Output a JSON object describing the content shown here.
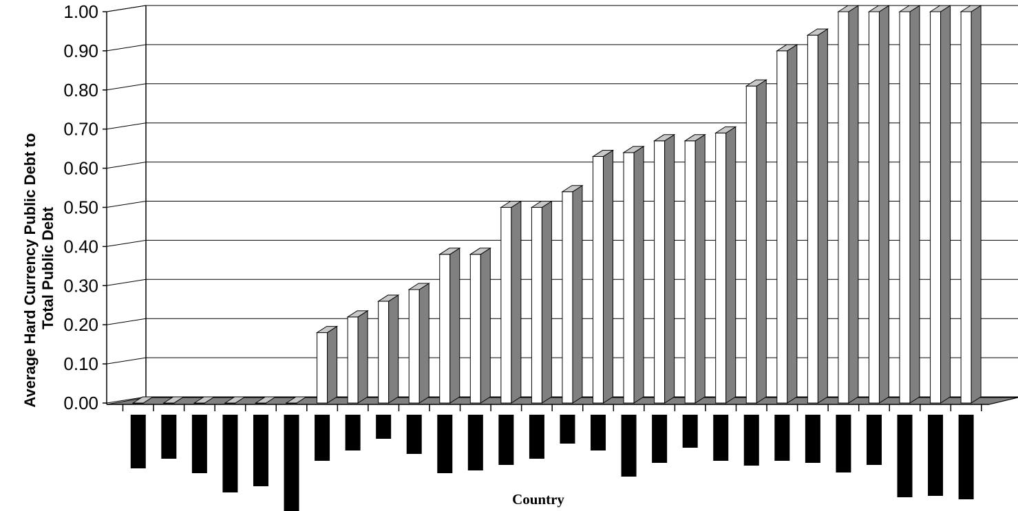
{
  "chart_data": {
    "type": "bar",
    "style": "3d-column",
    "xlabel": "Country",
    "ylabel": "Average Hard Currency Public Debt to Total Public Debt",
    "ylabel_lines": [
      "Average Hard Currency Public Debt to",
      "Total Public Debt"
    ],
    "ylim": [
      0,
      1.0
    ],
    "yticks": [
      "0.00",
      "0.10",
      "0.20",
      "0.30",
      "0.40",
      "0.50",
      "0.60",
      "0.70",
      "0.80",
      "0.90",
      "1.00"
    ],
    "grid": true,
    "legend": "none",
    "category_labels_note": "category labels are obscured by black redaction blocks",
    "redaction_depth": [
      0.56,
      0.46,
      0.61,
      0.81,
      0.74,
      1.0,
      0.48,
      0.37,
      0.25,
      0.41,
      0.61,
      0.58,
      0.52,
      0.46,
      0.3,
      0.37,
      0.64,
      0.5,
      0.34,
      0.48,
      0.53,
      0.48,
      0.5,
      0.6,
      0.52,
      0.86,
      0.84,
      0.88
    ],
    "values": [
      0.0,
      0.0,
      0.0,
      0.0,
      0.0,
      0.0,
      0.18,
      0.22,
      0.26,
      0.29,
      0.38,
      0.38,
      0.5,
      0.5,
      0.54,
      0.63,
      0.64,
      0.67,
      0.67,
      0.69,
      0.81,
      0.9,
      0.94,
      1.0,
      1.0,
      1.0,
      1.0,
      1.0
    ],
    "colors": {
      "bar_front": "#ffffff",
      "bar_side": "#808080",
      "bar_top": "#c8c8c8",
      "floor": "#808080",
      "redaction": "#000000",
      "grid": "#000000"
    }
  }
}
